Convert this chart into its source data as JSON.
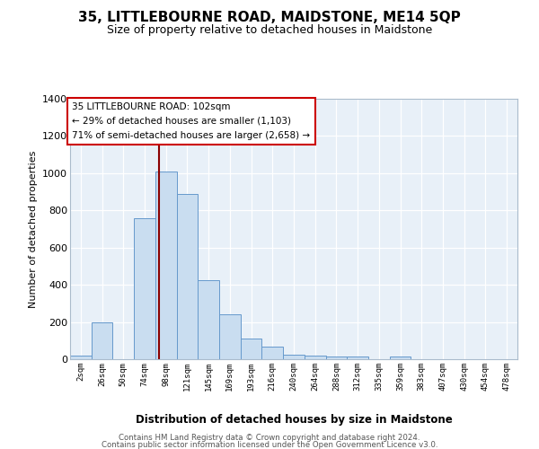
{
  "title": "35, LITTLEBOURNE ROAD, MAIDSTONE, ME14 5QP",
  "subtitle": "Size of property relative to detached houses in Maidstone",
  "xlabel": "Distribution of detached houses by size in Maidstone",
  "ylabel": "Number of detached properties",
  "bar_color": "#c9ddf0",
  "bar_edge_color": "#6699cc",
  "background_color": "#e8f0f8",
  "grid_color": "#d0d8e8",
  "bin_labels": [
    "2sqm",
    "26sqm",
    "50sqm",
    "74sqm",
    "98sqm",
    "121sqm",
    "145sqm",
    "169sqm",
    "193sqm",
    "216sqm",
    "240sqm",
    "264sqm",
    "288sqm",
    "312sqm",
    "335sqm",
    "359sqm",
    "383sqm",
    "407sqm",
    "430sqm",
    "454sqm",
    "478sqm"
  ],
  "bar_heights": [
    20,
    200,
    0,
    760,
    1010,
    890,
    425,
    240,
    110,
    70,
    25,
    20,
    15,
    13,
    0,
    15,
    0,
    0,
    0,
    0,
    0
  ],
  "ylim": [
    0,
    1400
  ],
  "yticks": [
    0,
    200,
    400,
    600,
    800,
    1000,
    1200,
    1400
  ],
  "red_line_x": 4.17,
  "annotation_title": "35 LITTLEBOURNE ROAD: 102sqm",
  "annotation_line1": "← 29% of detached houses are smaller (1,103)",
  "annotation_line2": "71% of semi-detached houses are larger (2,658) →",
  "footer_line1": "Contains HM Land Registry data © Crown copyright and database right 2024.",
  "footer_line2": "Contains public sector information licensed under the Open Government Licence v3.0."
}
